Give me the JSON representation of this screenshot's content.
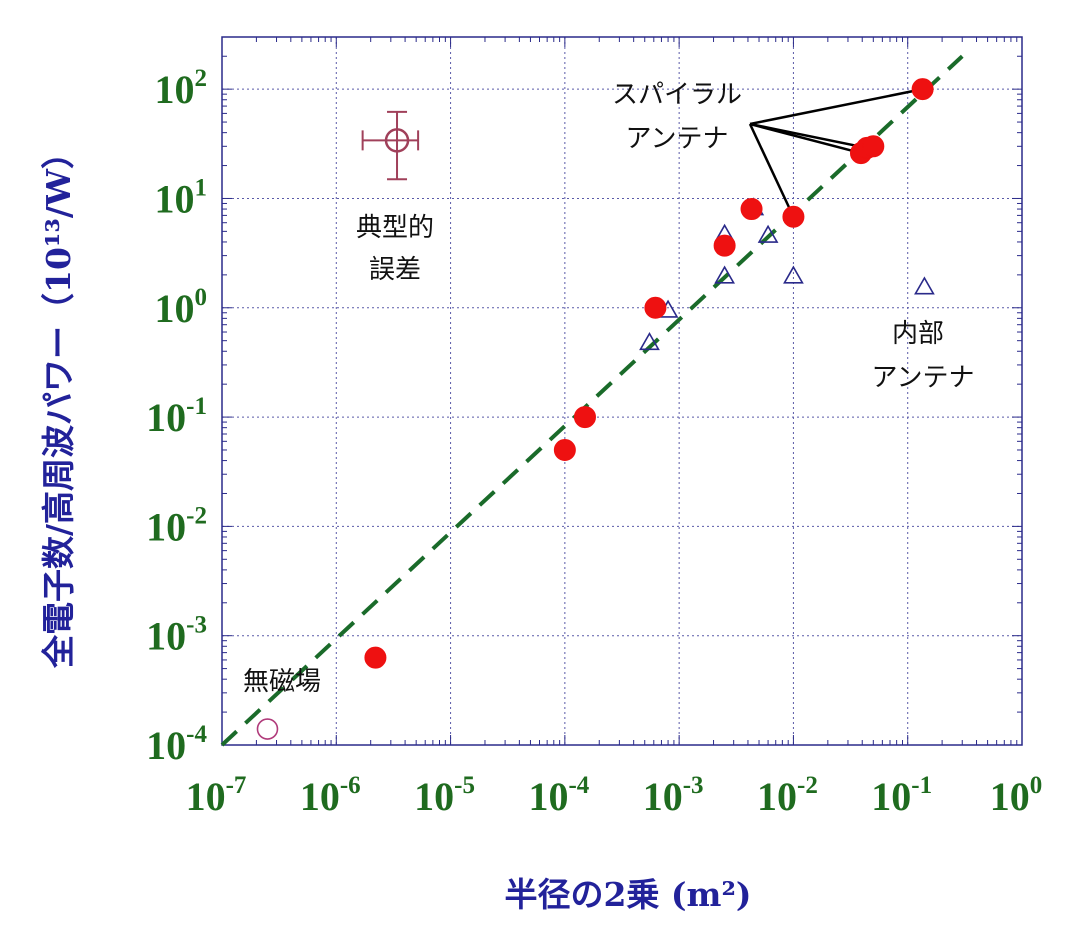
{
  "chart_data": {
    "type": "scatter",
    "xscale": "log",
    "yscale": "log",
    "xlim": [
      1e-07,
      1
    ],
    "ylim": [
      0.0001,
      300
    ],
    "grid": true,
    "xlabel": "半径の2乗 (m²)",
    "ylabel": "全電子数/高周波パワー（10¹³/W）",
    "x_ticks": [
      {
        "base": "10",
        "exp": "-7",
        "value": 1e-07
      },
      {
        "base": "10",
        "exp": "-6",
        "value": 1e-06
      },
      {
        "base": "10",
        "exp": "-5",
        "value": 1e-05
      },
      {
        "base": "10",
        "exp": "-4",
        "value": 0.0001
      },
      {
        "base": "10",
        "exp": "-3",
        "value": 0.001
      },
      {
        "base": "10",
        "exp": "-2",
        "value": 0.01
      },
      {
        "base": "10",
        "exp": "-1",
        "value": 0.1
      },
      {
        "base": "10",
        "exp": "0",
        "value": 1
      }
    ],
    "y_ticks": [
      {
        "base": "10",
        "exp": "-4",
        "value": 0.0001
      },
      {
        "base": "10",
        "exp": "-3",
        "value": 0.001
      },
      {
        "base": "10",
        "exp": "-2",
        "value": 0.01
      },
      {
        "base": "10",
        "exp": "-1",
        "value": 0.1
      },
      {
        "base": "10",
        "exp": "0",
        "value": 1
      },
      {
        "base": "10",
        "exp": "1",
        "value": 10
      },
      {
        "base": "10",
        "exp": "2",
        "value": 100
      }
    ],
    "series": [
      {
        "marker": "filled-circle",
        "color": "#ee1111",
        "points": [
          {
            "x": 2.2e-06,
            "y": 0.00063
          },
          {
            "x": 0.0001,
            "y": 0.05
          },
          {
            "x": 0.00015,
            "y": 0.1
          },
          {
            "x": 0.00062,
            "y": 1.0
          },
          {
            "x": 0.0025,
            "y": 3.7
          },
          {
            "x": 0.0043,
            "y": 8.0
          },
          {
            "x": 0.01,
            "y": 6.8
          },
          {
            "x": 0.039,
            "y": 26
          },
          {
            "x": 0.044,
            "y": 29
          },
          {
            "x": 0.05,
            "y": 30
          },
          {
            "x": 0.135,
            "y": 100
          }
        ]
      },
      {
        "marker": "open-triangle",
        "color": "#2a2a8a",
        "points": [
          {
            "x": 0.00055,
            "y": 0.48
          },
          {
            "x": 0.0008,
            "y": 0.95
          },
          {
            "x": 0.0025,
            "y": 1.95
          },
          {
            "x": 0.0025,
            "y": 4.7
          },
          {
            "x": 0.0045,
            "y": 8.2
          },
          {
            "x": 0.006,
            "y": 4.6
          },
          {
            "x": 0.01,
            "y": 1.95
          },
          {
            "x": 0.14,
            "y": 1.55
          }
        ]
      },
      {
        "marker": "open-circle",
        "color": "#b03a7a",
        "points": [
          {
            "x": 2.5e-07,
            "y": 0.00014
          }
        ]
      }
    ],
    "fit_line": {
      "style": "dashed",
      "color": "#1a6b2a",
      "from": {
        "x": 1e-07,
        "y": 0.0001
      },
      "to": {
        "x": 0.3,
        "y": 200
      }
    },
    "error_bar_example": {
      "x": 3.4e-06,
      "y": 34,
      "x_range": [
        1.7e-06,
        5.2e-06
      ],
      "y_range": [
        15,
        62
      ],
      "color": "#a0405a"
    },
    "annotations": {
      "error_label": [
        "典型的",
        "誤差"
      ],
      "spiral_label": [
        "スパイラル",
        "アンテナ"
      ],
      "internal_label": [
        "内部",
        "アンテナ"
      ],
      "nofield_label": "無磁場"
    }
  }
}
